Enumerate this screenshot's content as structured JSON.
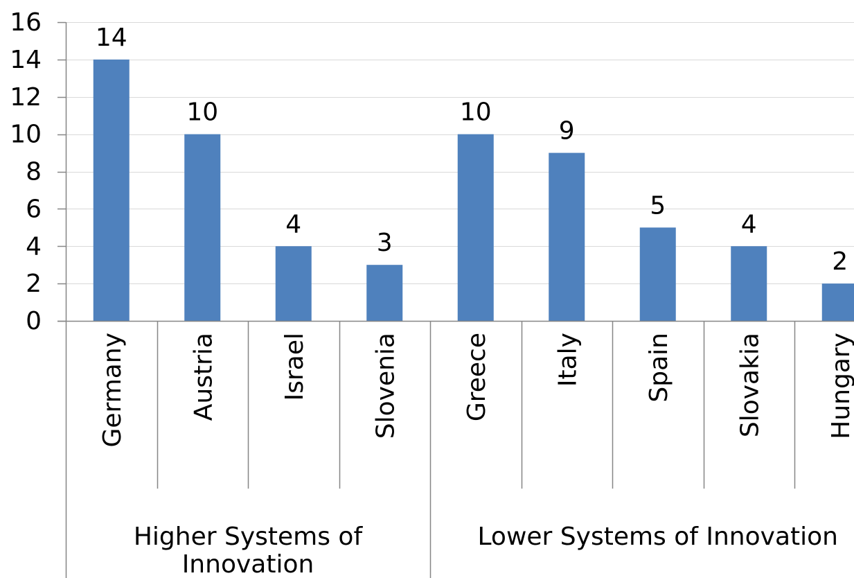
{
  "chart_data": {
    "type": "bar",
    "ylim": [
      0,
      16
    ],
    "yticks": [
      0,
      2,
      4,
      6,
      8,
      10,
      12,
      14,
      16
    ],
    "grid": true,
    "legend": "none",
    "bar_color": "#4f81bd",
    "grid_color": "#d9d9d9",
    "axis_color": "#868686",
    "categories": [
      "Germany",
      "Austria",
      "Israel",
      "Slovenia",
      "Greece",
      "Italy",
      "Spain",
      "Slovakia",
      "Hungary"
    ],
    "values": [
      14,
      10,
      4,
      3,
      10,
      9,
      5,
      4,
      2
    ],
    "groups": [
      {
        "label_lines": [
          "Higher Systems of",
          "Innovation"
        ],
        "count": 4
      },
      {
        "label_lines": [
          "Lower Systems of Innovation"
        ],
        "count": 5
      }
    ]
  }
}
